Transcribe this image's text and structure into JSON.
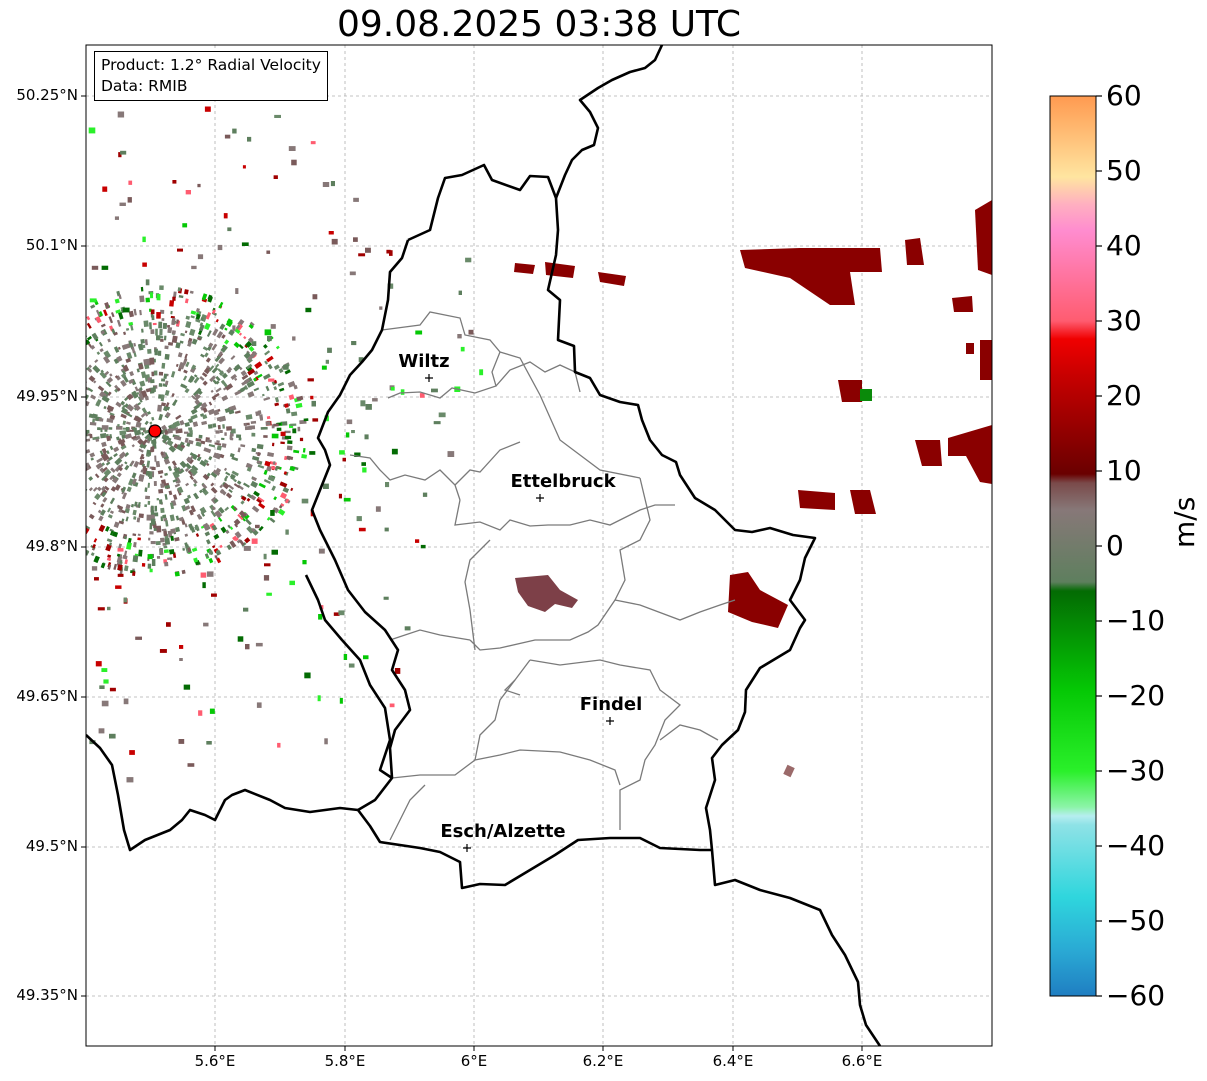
{
  "title": "09.08.2025 03:38 UTC",
  "info": {
    "product": "Product: 1.2° Radial Velocity",
    "data": "Data: RMIB"
  },
  "lat_labels": [
    "50.25°N",
    "50.1°N",
    "49.95°N",
    "49.8°N",
    "49.65°N",
    "49.5°N",
    "49.35°N"
  ],
  "lon_labels": [
    "5.6°E",
    "5.8°E",
    "6°E",
    "6.2°E",
    "6.4°E",
    "6.6°E"
  ],
  "cities": [
    "Wiltz",
    "Ettelbruck",
    "Findel",
    "Esch/Alzette"
  ],
  "colorbar": {
    "label": "m/s",
    "ticks": [
      "60",
      "50",
      "40",
      "30",
      "20",
      "10",
      "0",
      "−10",
      "−20",
      "−30",
      "−40",
      "−50",
      "−60"
    ],
    "min": -60,
    "max": 60,
    "colors": {
      "n60": "#1f7ec2",
      "n50": "#2fd6dd",
      "n40": "#b6eef0",
      "n30": "#8cf4a8",
      "n25": "#2af02a",
      "n15": "#05c805",
      "n5": "#036b03",
      "zero_low": "#5e7f5e",
      "zero_high": "#877878",
      "p10": "#6a0000",
      "p20": "#c80000",
      "p25": "#f00000",
      "p30": "#ff5c70",
      "p40": "#ff8ccf",
      "p45": "#ffd2a3",
      "p50": "#ffe5a0",
      "p60": "#ff9a50"
    }
  },
  "radar_site_color": "#ff0000"
}
